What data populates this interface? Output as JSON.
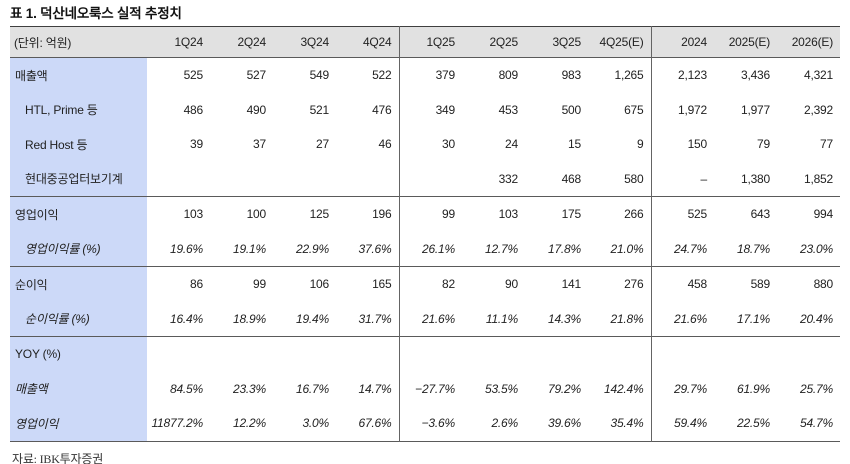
{
  "title": "표 1. 덕산네오룩스 실적 추정치",
  "source": "자료: IBK투자증권",
  "colors": {
    "header_bg": "#e1e1e1",
    "label_bg": "#ccd9f8",
    "line_dark": "#3f3f3f",
    "line_mid": "#5a5a5a",
    "divider": "#646464"
  },
  "table": {
    "unit_label": "(단위: 억원)",
    "columns": [
      "1Q24",
      "2Q24",
      "3Q24",
      "4Q24",
      "1Q25",
      "2Q25",
      "3Q25",
      "4Q25(E)",
      "2024",
      "2025(E)",
      "2026(E)"
    ],
    "group_dividers_after": [
      3,
      7
    ],
    "rows": [
      {
        "label": "매출액",
        "indent": 0,
        "italic": false,
        "section_start": false,
        "values": [
          "525",
          "527",
          "549",
          "522",
          "379",
          "809",
          "983",
          "1,265",
          "2,123",
          "3,436",
          "4,321"
        ]
      },
      {
        "label": "HTL, Prime 등",
        "indent": 1,
        "italic": false,
        "section_start": false,
        "values": [
          "486",
          "490",
          "521",
          "476",
          "349",
          "453",
          "500",
          "675",
          "1,972",
          "1,977",
          "2,392"
        ]
      },
      {
        "label": "Red Host 등",
        "indent": 1,
        "italic": false,
        "section_start": false,
        "values": [
          "39",
          "37",
          "27",
          "46",
          "30",
          "24",
          "15",
          "9",
          "150",
          "79",
          "77"
        ]
      },
      {
        "label": "현대중공업터보기계",
        "indent": 1,
        "italic": false,
        "section_start": false,
        "values": [
          "",
          "",
          "",
          "",
          "",
          "332",
          "468",
          "580",
          "–",
          "1,380",
          "1,852"
        ]
      },
      {
        "label": "영업이익",
        "indent": 0,
        "italic": false,
        "section_start": true,
        "values": [
          "103",
          "100",
          "125",
          "196",
          "99",
          "103",
          "175",
          "266",
          "525",
          "643",
          "994"
        ]
      },
      {
        "label": "영업이익률 (%)",
        "indent": 1,
        "italic": true,
        "section_start": false,
        "values": [
          "19.6%",
          "19.1%",
          "22.9%",
          "37.6%",
          "26.1%",
          "12.7%",
          "17.8%",
          "21.0%",
          "24.7%",
          "18.7%",
          "23.0%"
        ]
      },
      {
        "label": "순이익",
        "indent": 0,
        "italic": false,
        "section_start": true,
        "values": [
          "86",
          "99",
          "106",
          "165",
          "82",
          "90",
          "141",
          "276",
          "458",
          "589",
          "880"
        ]
      },
      {
        "label": "순이익률 (%)",
        "indent": 1,
        "italic": true,
        "section_start": false,
        "values": [
          "16.4%",
          "18.9%",
          "19.4%",
          "31.7%",
          "21.6%",
          "11.1%",
          "14.3%",
          "21.8%",
          "21.6%",
          "17.1%",
          "20.4%"
        ]
      },
      {
        "label": "YOY (%)",
        "indent": 0,
        "italic": false,
        "section_start": true,
        "values": [
          "",
          "",
          "",
          "",
          "",
          "",
          "",
          "",
          "",
          "",
          ""
        ]
      },
      {
        "label": "매출액",
        "indent": 0,
        "italic": true,
        "section_start": false,
        "values": [
          "84.5%",
          "23.3%",
          "16.7%",
          "14.7%",
          "−27.7%",
          "53.5%",
          "79.2%",
          "142.4%",
          "29.7%",
          "61.9%",
          "25.7%"
        ]
      },
      {
        "label": "영업이익",
        "indent": 0,
        "italic": true,
        "section_start": false,
        "values": [
          "11877.2%",
          "12.2%",
          "3.0%",
          "67.6%",
          "−3.6%",
          "2.6%",
          "39.6%",
          "35.4%",
          "59.4%",
          "22.5%",
          "54.7%"
        ]
      }
    ]
  }
}
